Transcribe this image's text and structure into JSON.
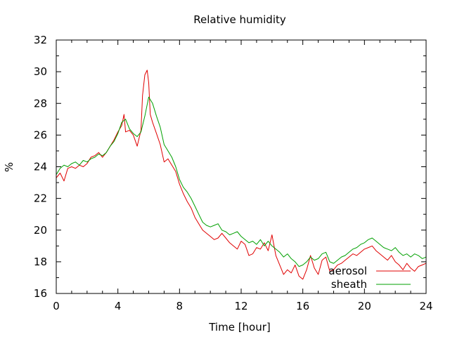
{
  "chart_data": {
    "type": "line",
    "title": "Relative humidity",
    "xlabel": "Time [hour]",
    "ylabel": "%",
    "xlim": [
      0,
      24
    ],
    "ylim": [
      16,
      32
    ],
    "x_ticks": [
      0,
      4,
      8,
      12,
      16,
      20,
      24
    ],
    "y_ticks": [
      16,
      18,
      20,
      22,
      24,
      26,
      28,
      30,
      32
    ],
    "grid": false,
    "legend_position": "bottom-right",
    "series": [
      {
        "name": "aerosol",
        "color": "#e00000",
        "x": [
          0,
          0.25,
          0.5,
          0.75,
          1,
          1.25,
          1.5,
          1.75,
          2,
          2.25,
          2.5,
          2.75,
          3,
          3.25,
          3.5,
          3.75,
          4,
          4.25,
          4.4,
          4.5,
          4.75,
          5,
          5.25,
          5.5,
          5.6,
          5.75,
          5.9,
          6,
          6.1,
          6.25,
          6.5,
          6.75,
          7,
          7.25,
          7.5,
          7.75,
          8,
          8.25,
          8.5,
          8.75,
          9,
          9.25,
          9.5,
          9.75,
          10,
          10.25,
          10.5,
          10.75,
          11,
          11.25,
          11.5,
          11.75,
          12,
          12.25,
          12.5,
          12.75,
          13,
          13.25,
          13.5,
          13.75,
          14,
          14.25,
          14.5,
          14.75,
          15,
          15.25,
          15.5,
          15.75,
          16,
          16.25,
          16.5,
          16.75,
          17,
          17.25,
          17.5,
          17.75,
          18,
          18.25,
          18.5,
          18.75,
          19,
          19.25,
          19.5,
          19.75,
          20,
          20.25,
          20.5,
          20.75,
          21,
          21.25,
          21.5,
          21.75,
          22,
          22.25,
          22.5,
          22.75,
          23,
          23.25,
          23.5,
          23.75,
          24
        ],
        "values": [
          23.3,
          23.6,
          23.1,
          23.9,
          24.0,
          23.9,
          24.1,
          24.0,
          24.2,
          24.6,
          24.7,
          24.9,
          24.6,
          24.9,
          25.3,
          25.7,
          26.2,
          26.6,
          27.3,
          26.2,
          26.3,
          26.0,
          25.3,
          26.3,
          28.5,
          29.8,
          30.1,
          29.3,
          27.3,
          26.8,
          26.1,
          25.4,
          24.3,
          24.5,
          24.1,
          23.7,
          22.9,
          22.3,
          21.8,
          21.4,
          20.8,
          20.4,
          20.0,
          19.8,
          19.6,
          19.4,
          19.5,
          19.8,
          19.5,
          19.2,
          19.0,
          18.8,
          19.3,
          19.1,
          18.4,
          18.5,
          18.9,
          18.8,
          19.2,
          18.7,
          19.7,
          18.4,
          17.8,
          17.2,
          17.5,
          17.3,
          17.8,
          17.1,
          16.9,
          17.5,
          18.4,
          17.6,
          17.2,
          18.1,
          18.3,
          17.4,
          17.5,
          17.8,
          17.9,
          18.1,
          18.3,
          18.5,
          18.4,
          18.6,
          18.8,
          18.9,
          19.0,
          18.7,
          18.5,
          18.3,
          18.1,
          18.4,
          18.0,
          17.8,
          17.5,
          17.9,
          17.6,
          17.4,
          17.7,
          17.8,
          17.9
        ]
      },
      {
        "name": "sheath",
        "color": "#00a000",
        "x": [
          0,
          0.25,
          0.5,
          0.75,
          1,
          1.25,
          1.5,
          1.75,
          2,
          2.25,
          2.5,
          2.75,
          3,
          3.25,
          3.5,
          3.75,
          4,
          4.25,
          4.5,
          4.75,
          5,
          5.25,
          5.5,
          5.75,
          6,
          6.25,
          6.5,
          6.75,
          7,
          7.25,
          7.5,
          7.75,
          8,
          8.25,
          8.5,
          8.75,
          9,
          9.25,
          9.5,
          9.75,
          10,
          10.25,
          10.5,
          10.75,
          11,
          11.25,
          11.5,
          11.75,
          12,
          12.25,
          12.5,
          12.75,
          13,
          13.25,
          13.5,
          13.75,
          14,
          14.25,
          14.5,
          14.75,
          15,
          15.25,
          15.5,
          15.75,
          16,
          16.25,
          16.5,
          16.75,
          17,
          17.25,
          17.5,
          17.75,
          18,
          18.25,
          18.5,
          18.75,
          19,
          19.25,
          19.5,
          19.75,
          20,
          20.25,
          20.5,
          20.75,
          21,
          21.25,
          21.5,
          21.75,
          22,
          22.25,
          22.5,
          22.75,
          23,
          23.25,
          23.5,
          23.75,
          24
        ],
        "values": [
          23.5,
          23.9,
          24.1,
          24.0,
          24.2,
          24.3,
          24.1,
          24.4,
          24.3,
          24.5,
          24.6,
          24.8,
          24.7,
          24.9,
          25.3,
          25.6,
          26.1,
          26.8,
          27.0,
          26.4,
          26.1,
          25.9,
          26.2,
          27.2,
          28.4,
          28.0,
          27.2,
          26.5,
          25.4,
          25.0,
          24.6,
          24.0,
          23.2,
          22.7,
          22.4,
          22.0,
          21.5,
          21.0,
          20.5,
          20.3,
          20.2,
          20.3,
          20.4,
          20.0,
          19.9,
          19.7,
          19.8,
          19.9,
          19.6,
          19.4,
          19.2,
          19.3,
          19.1,
          19.4,
          19.0,
          19.3,
          19.0,
          18.8,
          18.6,
          18.3,
          18.5,
          18.2,
          18.0,
          17.7,
          17.8,
          18.0,
          18.3,
          18.1,
          18.2,
          18.5,
          18.6,
          18.0,
          17.9,
          18.1,
          18.3,
          18.4,
          18.6,
          18.8,
          18.9,
          19.1,
          19.2,
          19.4,
          19.5,
          19.3,
          19.1,
          18.9,
          18.8,
          18.7,
          18.9,
          18.6,
          18.4,
          18.5,
          18.3,
          18.5,
          18.4,
          18.2,
          18.3
        ]
      }
    ]
  }
}
